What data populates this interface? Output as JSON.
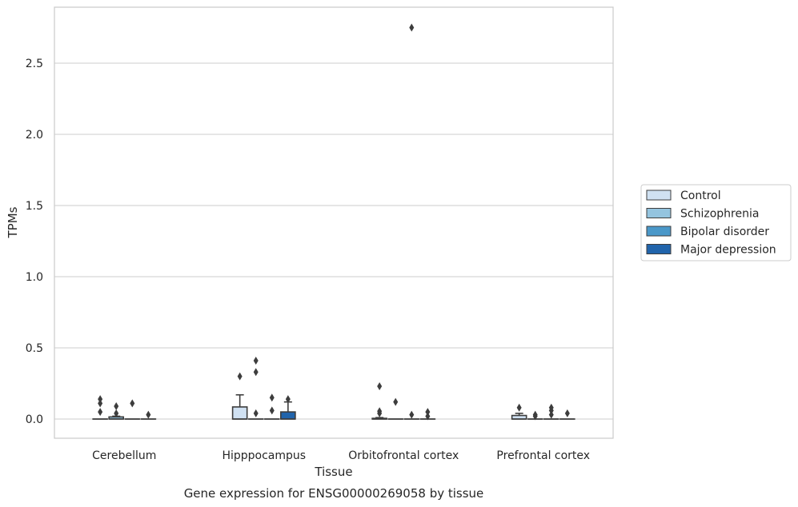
{
  "chart_data": {
    "type": "box",
    "xlabel": "Tissue",
    "ylabel": "TPMs",
    "caption": "Gene expression for ENSG00000269058 by tissue",
    "ylim": [
      -0.14,
      2.9
    ],
    "yticks": [
      0.0,
      0.5,
      1.0,
      1.5,
      2.0,
      2.5
    ],
    "ytick_labels": [
      "0.0",
      "0.5",
      "1.0",
      "1.5",
      "2.0",
      "2.5"
    ],
    "grid": "horizontal",
    "legend_position": "right",
    "categories": [
      "Cerebellum",
      "Hipppocampus",
      "Orbitofrontal cortex",
      "Prefrontal cortex"
    ],
    "series": [
      {
        "name": "Control",
        "color": "#d0e1f2",
        "boxes": [
          {
            "q1": 0,
            "median": 0,
            "q3": 0,
            "whisker_low": 0,
            "whisker_high": 0,
            "outliers": [
              0.14,
              0.11,
              0.05
            ]
          },
          {
            "q1": 0,
            "median": 0,
            "q3": 0.085,
            "whisker_low": 0,
            "whisker_high": 0.17,
            "outliers": [
              0.3
            ]
          },
          {
            "q1": 0,
            "median": 0,
            "q3": 0.005,
            "whisker_low": 0,
            "whisker_high": 0.01,
            "outliers": [
              0.23,
              0.055,
              0.04
            ]
          },
          {
            "q1": 0,
            "median": 0,
            "q3": 0.025,
            "whisker_low": 0,
            "whisker_high": 0.04,
            "outliers": [
              0.08
            ]
          }
        ]
      },
      {
        "name": "Schizophrenia",
        "color": "#94c4df",
        "boxes": [
          {
            "q1": 0,
            "median": 0,
            "q3": 0.015,
            "whisker_low": 0,
            "whisker_high": 0.02,
            "outliers": [
              0.09,
              0.04
            ]
          },
          {
            "q1": 0,
            "median": 0,
            "q3": 0,
            "whisker_low": 0,
            "whisker_high": 0,
            "outliers": [
              0.41,
              0.33,
              0.04
            ]
          },
          {
            "q1": 0,
            "median": 0,
            "q3": 0,
            "whisker_low": 0,
            "whisker_high": 0,
            "outliers": [
              0.12
            ]
          },
          {
            "q1": 0,
            "median": 0,
            "q3": 0,
            "whisker_low": 0,
            "whisker_high": 0,
            "outliers": [
              0.03,
              0.02
            ]
          }
        ]
      },
      {
        "name": "Bipolar disorder",
        "color": "#4a98c9",
        "boxes": [
          {
            "q1": 0,
            "median": 0,
            "q3": 0,
            "whisker_low": 0,
            "whisker_high": 0,
            "outliers": [
              0.11
            ]
          },
          {
            "q1": 0,
            "median": 0,
            "q3": 0,
            "whisker_low": 0,
            "whisker_high": 0,
            "outliers": [
              0.15,
              0.06
            ]
          },
          {
            "q1": 0,
            "median": 0,
            "q3": 0,
            "whisker_low": 0,
            "whisker_high": 0,
            "outliers": [
              2.75,
              0.03
            ]
          },
          {
            "q1": 0,
            "median": 0,
            "q3": 0,
            "whisker_low": 0,
            "whisker_high": 0,
            "outliers": [
              0.08,
              0.06,
              0.03
            ]
          }
        ]
      },
      {
        "name": "Major depression",
        "color": "#2164ab",
        "boxes": [
          {
            "q1": 0,
            "median": 0,
            "q3": 0,
            "whisker_low": 0,
            "whisker_high": 0,
            "outliers": [
              0.03
            ]
          },
          {
            "q1": 0,
            "median": 0,
            "q3": 0.05,
            "whisker_low": 0,
            "whisker_high": 0.12,
            "outliers": [
              0.14
            ]
          },
          {
            "q1": 0,
            "median": 0,
            "q3": 0,
            "whisker_low": 0,
            "whisker_high": 0,
            "outliers": [
              0.05,
              0.02
            ]
          },
          {
            "q1": 0,
            "median": 0,
            "q3": 0,
            "whisker_low": 0,
            "whisker_high": 0,
            "outliers": [
              0.04
            ]
          }
        ]
      }
    ]
  }
}
